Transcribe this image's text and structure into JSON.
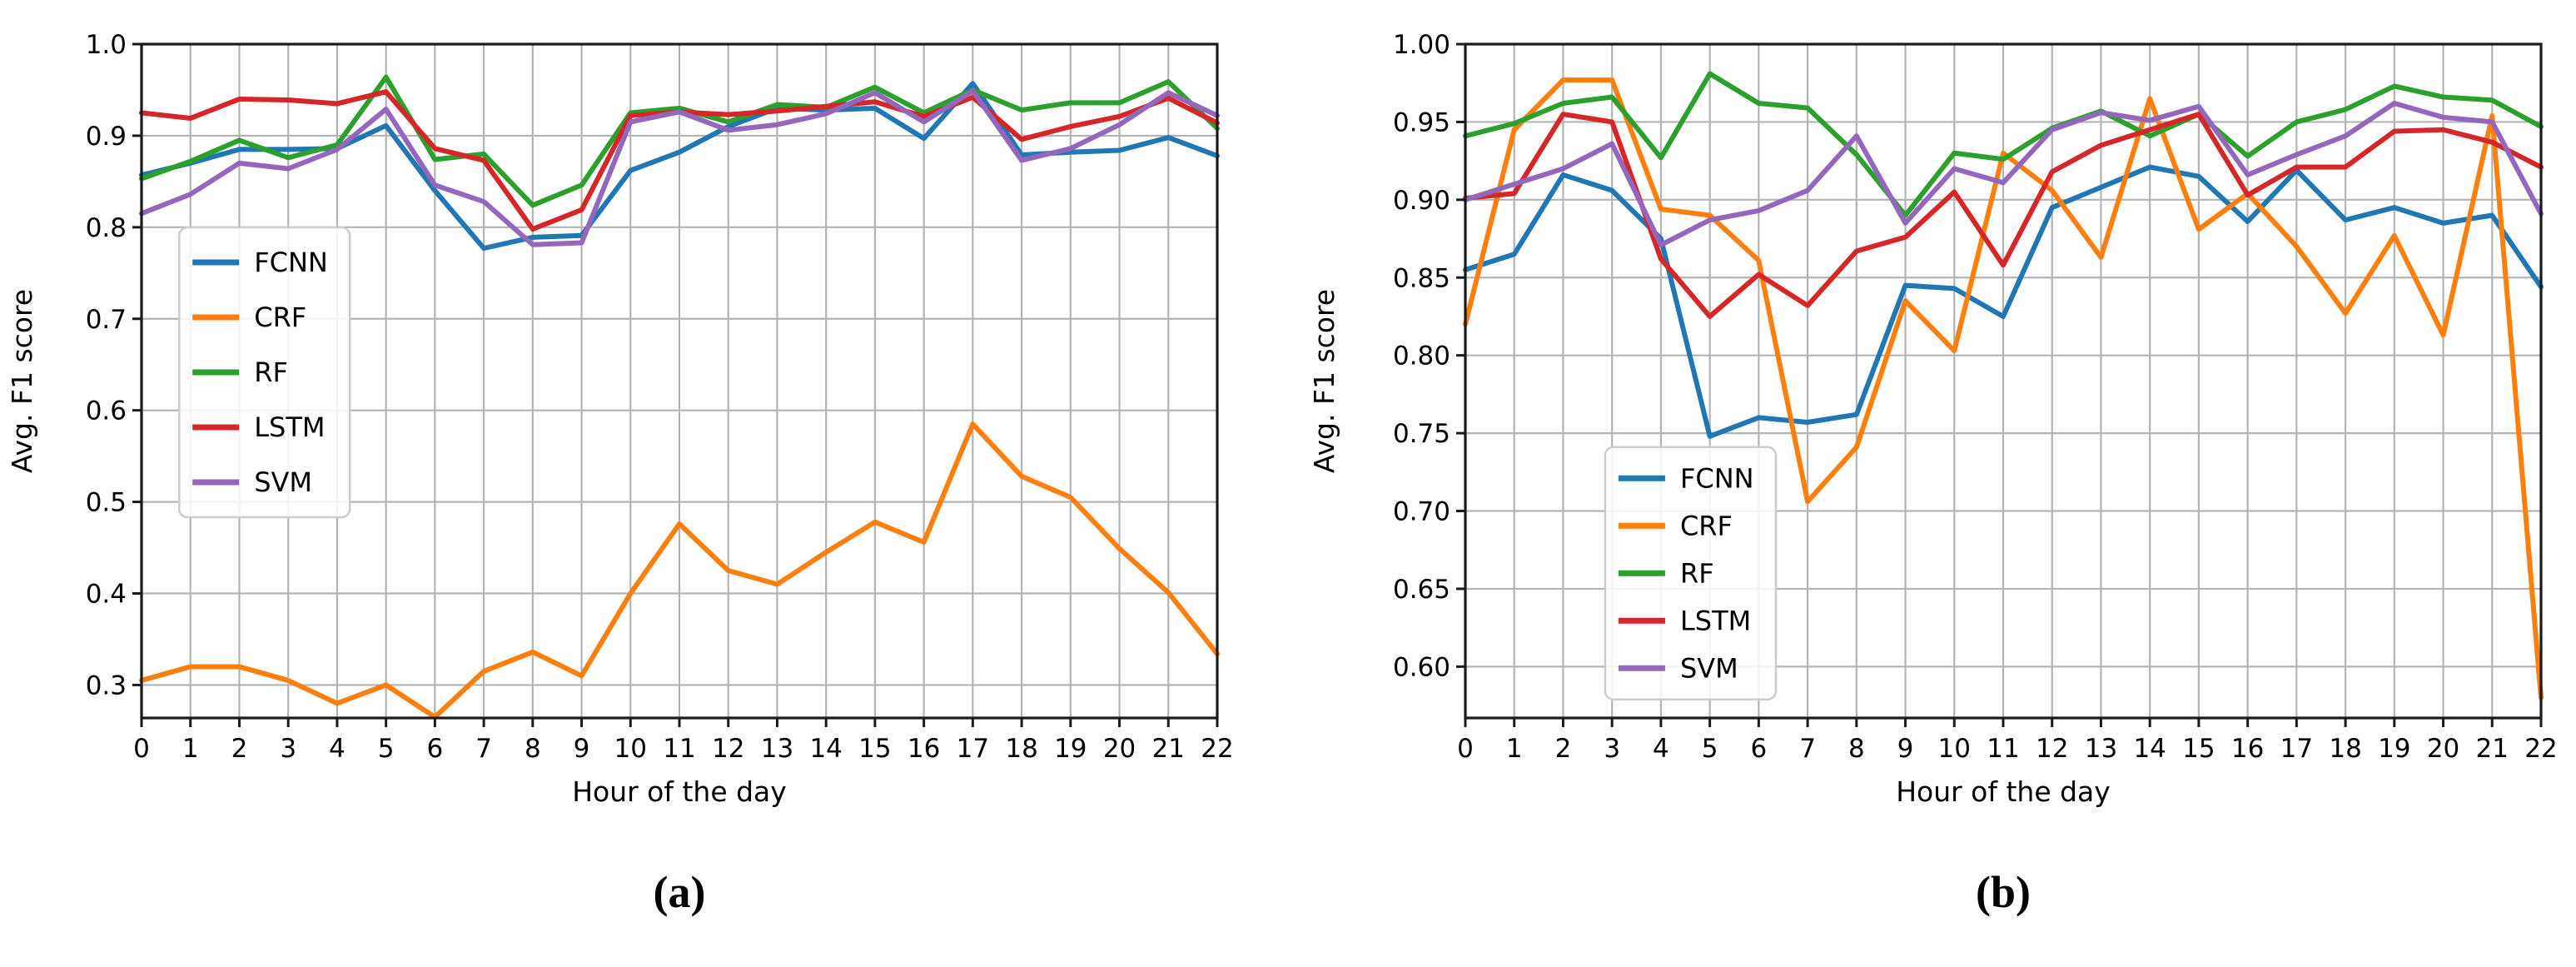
{
  "chart_data": [
    {
      "type": "line",
      "panel": "a",
      "caption": "(a)",
      "title": "",
      "xlabel": "Hour of the day",
      "ylabel": "Avg. F1 score",
      "grid": true,
      "legend_position": "upper left",
      "xlim": [
        0,
        22
      ],
      "ylim": [
        0.264,
        1.0
      ],
      "x": [
        0,
        1,
        2,
        3,
        4,
        5,
        6,
        7,
        8,
        9,
        10,
        11,
        12,
        13,
        14,
        15,
        16,
        17,
        18,
        19,
        20,
        21,
        22
      ],
      "xtick_labels": [
        "0",
        "1",
        "2",
        "3",
        "4",
        "5",
        "6",
        "7",
        "8",
        "9",
        "10",
        "11",
        "12",
        "13",
        "14",
        "15",
        "16",
        "17",
        "18",
        "19",
        "20",
        "21",
        "22"
      ],
      "yticks": [
        0.3,
        0.4,
        0.5,
        0.6,
        0.7,
        0.8,
        0.9,
        1.0
      ],
      "ytick_labels": [
        "0.3",
        "0.4",
        "0.5",
        "0.6",
        "0.7",
        "0.8",
        "0.9",
        "1.0"
      ],
      "series": [
        {
          "name": "FCNN",
          "color": "#1f77b4",
          "values": [
            0.857,
            0.87,
            0.885,
            0.885,
            0.886,
            0.911,
            0.84,
            0.777,
            0.789,
            0.791,
            0.862,
            0.882,
            0.91,
            0.93,
            0.928,
            0.93,
            0.897,
            0.957,
            0.879,
            0.882,
            0.884,
            0.898,
            0.878
          ]
        },
        {
          "name": "CRF",
          "color": "#ff7f0e",
          "values": [
            0.305,
            0.32,
            0.32,
            0.305,
            0.28,
            0.3,
            0.265,
            0.315,
            0.336,
            0.31,
            0.4,
            0.476,
            0.425,
            0.41,
            0.445,
            0.478,
            0.456,
            0.585,
            0.528,
            0.505,
            0.449,
            0.401,
            0.334
          ]
        },
        {
          "name": "RF",
          "color": "#2ca02c",
          "values": [
            0.853,
            0.872,
            0.895,
            0.876,
            0.89,
            0.964,
            0.874,
            0.88,
            0.824,
            0.846,
            0.925,
            0.93,
            0.915,
            0.934,
            0.931,
            0.953,
            0.925,
            0.95,
            0.928,
            0.936,
            0.936,
            0.959,
            0.908
          ]
        },
        {
          "name": "LSTM",
          "color": "#d62728",
          "values": [
            0.925,
            0.919,
            0.94,
            0.939,
            0.935,
            0.948,
            0.886,
            0.873,
            0.798,
            0.819,
            0.922,
            0.926,
            0.923,
            0.927,
            0.932,
            0.937,
            0.921,
            0.942,
            0.896,
            0.91,
            0.921,
            0.941,
            0.914
          ]
        },
        {
          "name": "SVM",
          "color": "#9467bd",
          "values": [
            0.815,
            0.836,
            0.87,
            0.864,
            0.885,
            0.929,
            0.846,
            0.828,
            0.781,
            0.783,
            0.915,
            0.926,
            0.906,
            0.912,
            0.924,
            0.947,
            0.915,
            0.949,
            0.873,
            0.886,
            0.912,
            0.947,
            0.922
          ]
        }
      ]
    },
    {
      "type": "line",
      "panel": "b",
      "caption": "(b)",
      "title": "",
      "xlabel": "Hour of the day",
      "ylabel": "Avg. F1 score",
      "grid": true,
      "legend_position": "lower left",
      "xlim": [
        0,
        22
      ],
      "ylim": [
        0.567,
        1.0
      ],
      "x": [
        0,
        1,
        2,
        3,
        4,
        5,
        6,
        7,
        8,
        9,
        10,
        11,
        12,
        13,
        14,
        15,
        16,
        17,
        18,
        19,
        20,
        21,
        22
      ],
      "xtick_labels": [
        "0",
        "1",
        "2",
        "3",
        "4",
        "5",
        "6",
        "7",
        "8",
        "9",
        "10",
        "11",
        "12",
        "13",
        "14",
        "15",
        "16",
        "17",
        "18",
        "19",
        "20",
        "21",
        "22"
      ],
      "yticks": [
        0.6,
        0.65,
        0.7,
        0.75,
        0.8,
        0.85,
        0.9,
        0.95,
        1.0
      ],
      "ytick_labels": [
        "0.60",
        "0.65",
        "0.70",
        "0.75",
        "0.80",
        "0.85",
        "0.90",
        "0.95",
        "1.00"
      ],
      "series": [
        {
          "name": "FCNN",
          "color": "#1f77b4",
          "values": [
            0.855,
            0.865,
            0.916,
            0.906,
            0.875,
            0.748,
            0.76,
            0.757,
            0.762,
            0.845,
            0.843,
            0.825,
            0.895,
            0.908,
            0.921,
            0.915,
            0.886,
            0.919,
            0.887,
            0.895,
            0.885,
            0.89,
            0.844
          ]
        },
        {
          "name": "CRF",
          "color": "#ff7f0e",
          "values": [
            0.82,
            0.945,
            0.977,
            0.977,
            0.894,
            0.89,
            0.861,
            0.706,
            0.741,
            0.835,
            0.803,
            0.93,
            0.906,
            0.863,
            0.965,
            0.881,
            0.904,
            0.87,
            0.827,
            0.877,
            0.813,
            0.954,
            0.58
          ]
        },
        {
          "name": "RF",
          "color": "#2ca02c",
          "values": [
            0.941,
            0.949,
            0.962,
            0.966,
            0.927,
            0.981,
            0.962,
            0.959,
            0.929,
            0.89,
            0.93,
            0.926,
            0.946,
            0.957,
            0.941,
            0.955,
            0.928,
            0.95,
            0.958,
            0.973,
            0.966,
            0.964,
            0.947
          ]
        },
        {
          "name": "LSTM",
          "color": "#d62728",
          "values": [
            0.901,
            0.904,
            0.955,
            0.95,
            0.862,
            0.825,
            0.852,
            0.832,
            0.867,
            0.876,
            0.905,
            0.858,
            0.918,
            0.935,
            0.945,
            0.955,
            0.903,
            0.921,
            0.921,
            0.944,
            0.945,
            0.937,
            0.921
          ]
        },
        {
          "name": "SVM",
          "color": "#9467bd",
          "values": [
            0.9,
            0.91,
            0.92,
            0.936,
            0.871,
            0.887,
            0.893,
            0.906,
            0.941,
            0.885,
            0.92,
            0.911,
            0.945,
            0.956,
            0.951,
            0.96,
            0.916,
            0.929,
            0.941,
            0.962,
            0.953,
            0.95,
            0.891
          ]
        }
      ]
    }
  ],
  "style": {
    "grid_color": "#b3b3b3",
    "spine_color": "#1a1a1a",
    "text_color": "#000000",
    "legend_border_color": "#cccccc",
    "legend_bg_color": "#ffffff"
  }
}
